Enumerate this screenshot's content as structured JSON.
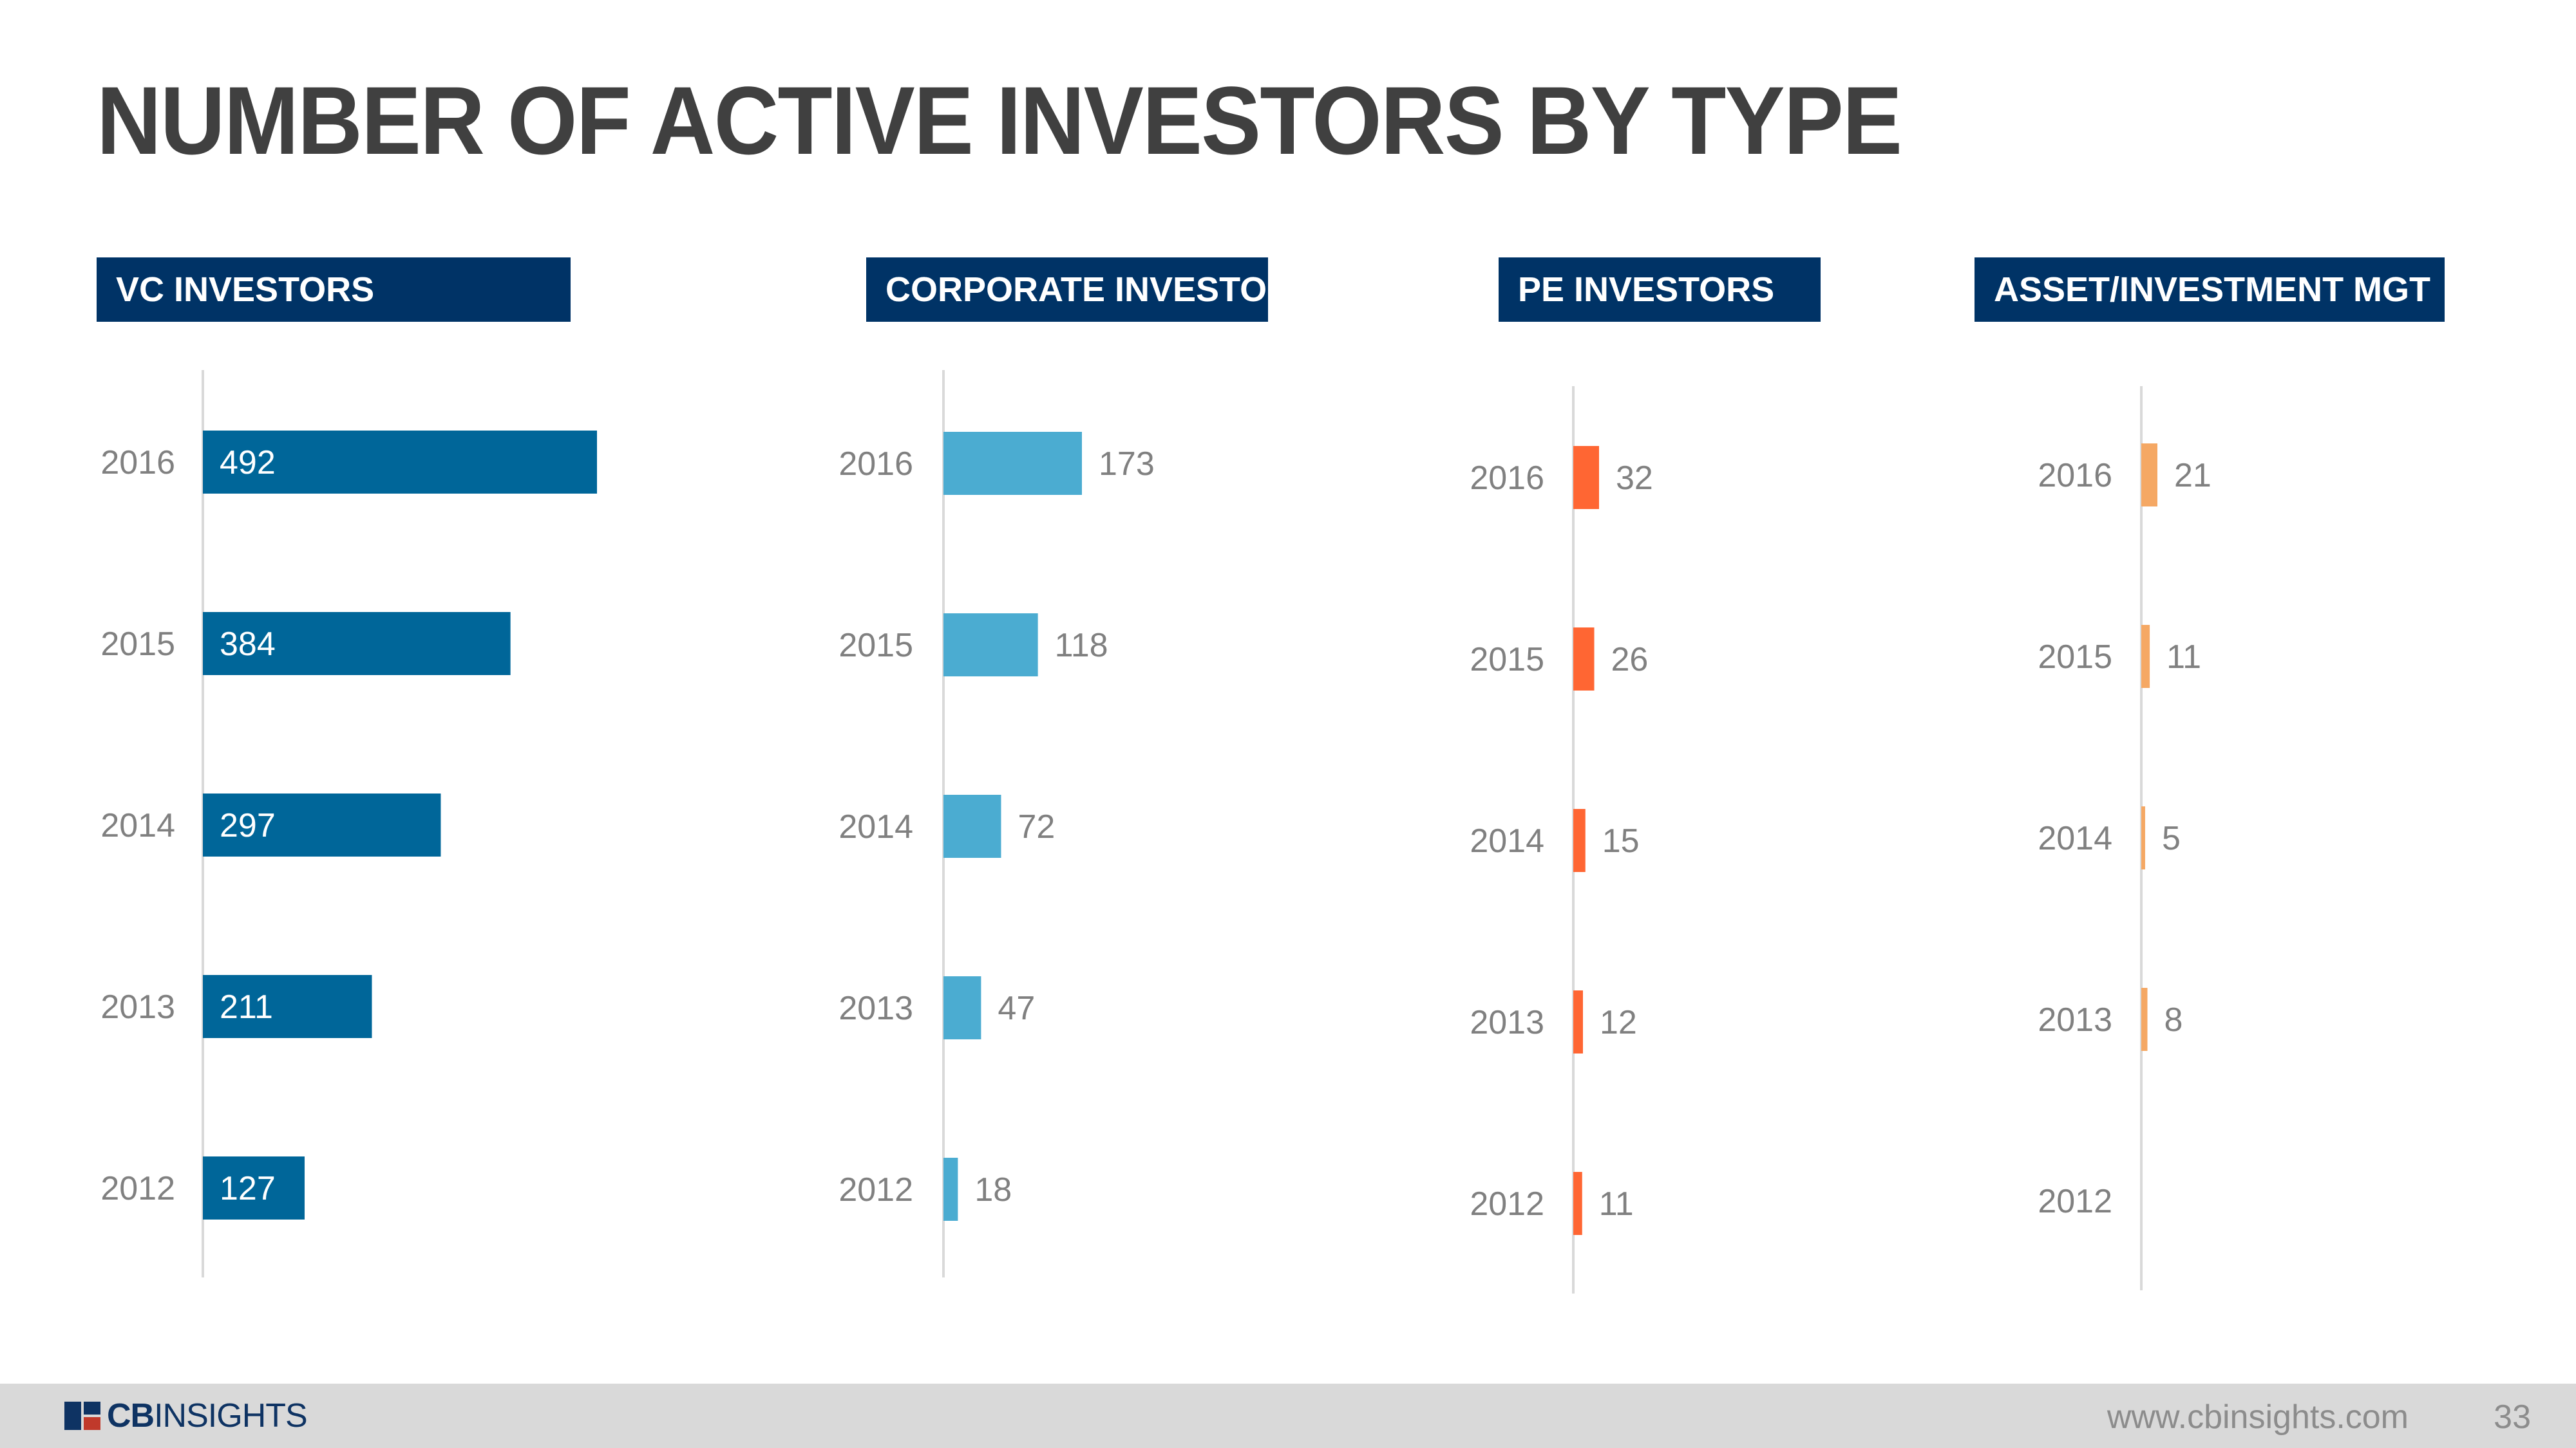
{
  "title": "NUMBER OF ACTIVE INVESTORS BY TYPE",
  "chart_data": [
    {
      "type": "bar",
      "title": "VC INVESTORS",
      "categories": [
        "2016",
        "2015",
        "2014",
        "2013",
        "2012"
      ],
      "values": [
        492,
        384,
        297,
        211,
        127
      ],
      "color": "#006699",
      "label_inside": true
    },
    {
      "type": "bar",
      "title": "CORPORATE INVESTORS",
      "categories": [
        "2016",
        "2015",
        "2014",
        "2013",
        "2012"
      ],
      "values": [
        173,
        118,
        72,
        47,
        18
      ],
      "color": "#4bacd1",
      "label_inside": false
    },
    {
      "type": "bar",
      "title": "PE INVESTORS",
      "categories": [
        "2016",
        "2015",
        "2014",
        "2013",
        "2012"
      ],
      "values": [
        32,
        26,
        15,
        12,
        11
      ],
      "color": "#ff6633",
      "label_inside": false
    },
    {
      "type": "bar",
      "title": "ASSET/INVESTMENT MGT",
      "categories": [
        "2016",
        "2015",
        "2014",
        "2013",
        "2012"
      ],
      "values": [
        21,
        11,
        5,
        8,
        null
      ],
      "color": "#f5a864",
      "label_inside": false
    }
  ],
  "colors": {
    "header_bg": "#003366",
    "title_text": "#404040",
    "label_text": "#808080"
  },
  "footer": {
    "logo_bold": "CB",
    "logo_rest": "INSIGHTS",
    "url": "www.cbinsights.com",
    "page_number": "33"
  }
}
